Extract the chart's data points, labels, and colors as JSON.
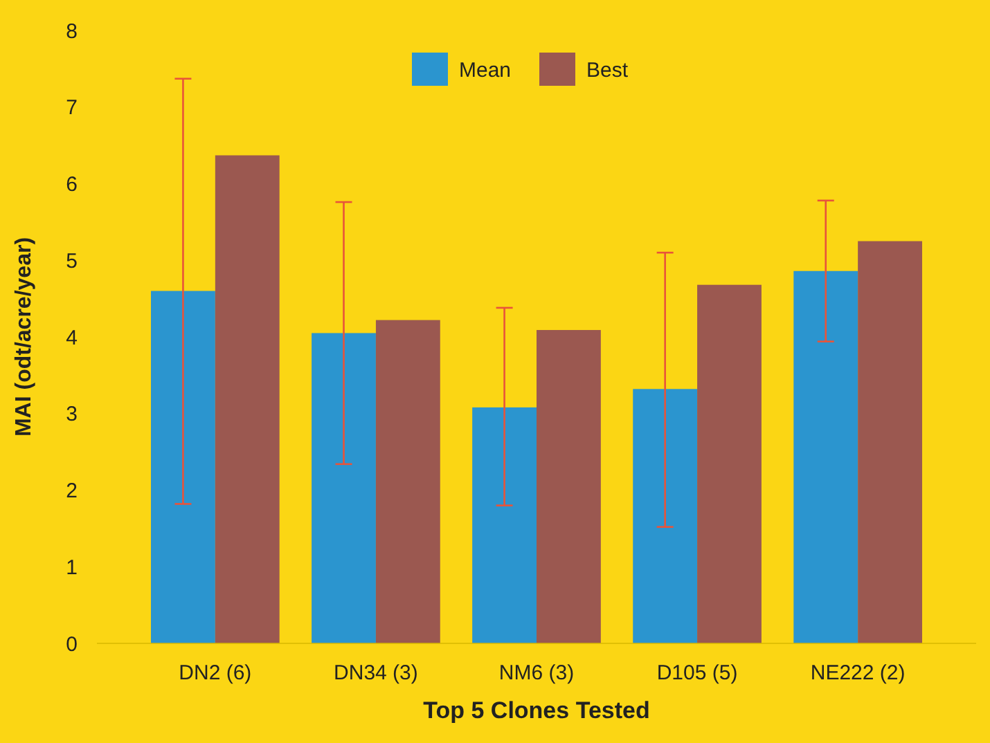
{
  "chart_data": {
    "type": "bar",
    "xlabel": "Top 5 Clones Tested",
    "ylabel": "MAI (odt/acre/year)",
    "categories": [
      "DN2 (6)",
      "DN34 (3)",
      "NM6 (3)",
      "D105 (5)",
      "NE222 (2)"
    ],
    "series": [
      {
        "name": "Mean",
        "color": "#2b95cf",
        "values": [
          4.6,
          4.05,
          3.08,
          3.32,
          4.86
        ],
        "errors": [
          [
            1.82,
            7.37
          ],
          [
            2.34,
            5.76
          ],
          [
            1.8,
            4.38
          ],
          [
            1.52,
            5.1
          ],
          [
            3.94,
            5.78
          ]
        ]
      },
      {
        "name": "Best",
        "color": "#9b5850",
        "values": [
          6.37,
          4.22,
          4.09,
          4.68,
          5.25
        ]
      }
    ],
    "ylim": [
      0,
      8
    ],
    "yticks": [
      0,
      1,
      2,
      3,
      4,
      5,
      6,
      7,
      8
    ],
    "grid": false,
    "legend": "top"
  }
}
